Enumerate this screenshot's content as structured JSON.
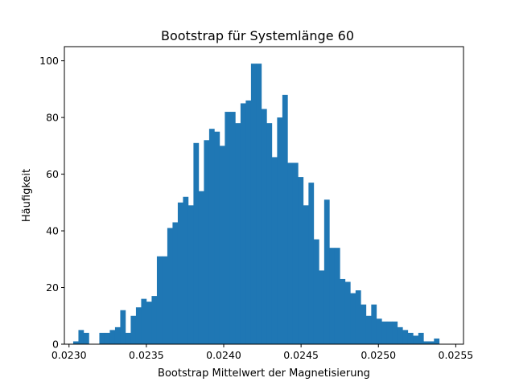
{
  "chart_data": {
    "type": "bar",
    "title": "Bootstrap für Systemlänge 60",
    "xlabel": "Bootstrap Mittelwert der Magnetisierung",
    "ylabel": "Häufigkeit",
    "xlim": [
      0.02297,
      0.02555
    ],
    "ylim": [
      0,
      105
    ],
    "grid": false,
    "color": "#1f77b4",
    "x_ticks": [
      0.023,
      0.0235,
      0.024,
      0.0245,
      0.025,
      0.0255
    ],
    "x_tick_labels": [
      "0.0230",
      "0.0235",
      "0.0240",
      "0.0245",
      "0.0250",
      "0.0255"
    ],
    "y_ticks": [
      0,
      20,
      40,
      60,
      80,
      100
    ],
    "y_tick_labels": [
      "0",
      "20",
      "40",
      "60",
      "80",
      "100"
    ],
    "bins": {
      "start": 0.023027,
      "width": 3.38e-05,
      "counts": [
        1,
        5,
        4,
        0,
        0,
        4,
        4,
        5,
        6,
        12,
        4,
        10,
        13,
        16,
        15,
        17,
        31,
        31,
        41,
        43,
        50,
        52,
        49,
        71,
        54,
        72,
        76,
        75,
        70,
        82,
        82,
        78,
        85,
        86,
        99,
        99,
        83,
        78,
        66,
        80,
        88,
        64,
        64,
        59,
        49,
        57,
        37,
        26,
        51,
        34,
        34,
        23,
        22,
        18,
        19,
        14,
        10,
        14,
        9,
        8,
        8,
        8,
        6,
        5,
        4,
        3,
        4,
        1,
        1,
        2
      ]
    }
  }
}
